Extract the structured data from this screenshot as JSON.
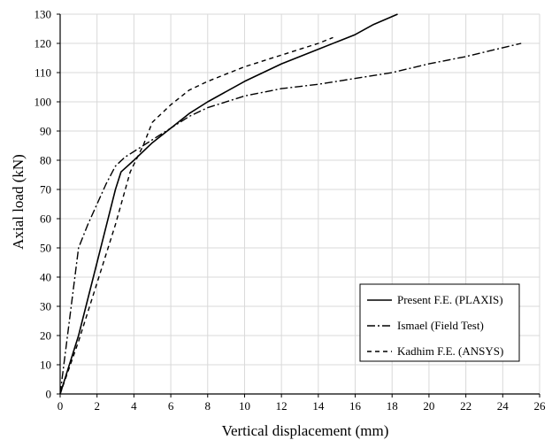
{
  "chart_data": {
    "type": "line",
    "title": "",
    "xlabel": "Vertical displacement (mm)",
    "ylabel": "Axial load (kN)",
    "xlim": [
      0,
      26
    ],
    "ylim": [
      0,
      130
    ],
    "x_ticks": [
      "0",
      "2",
      "4",
      "6",
      "8",
      "10",
      "12",
      "14",
      "16",
      "18",
      "20",
      "22",
      "24",
      "26"
    ],
    "y_ticks": [
      "0",
      "10",
      "20",
      "30",
      "40",
      "50",
      "60",
      "70",
      "80",
      "90",
      "100",
      "110",
      "120",
      "130"
    ],
    "grid": true,
    "legend_position": "bottom-right",
    "series": [
      {
        "name": "Present F.E. (PLAXIS)",
        "style": "solid",
        "points": [
          [
            0,
            0
          ],
          [
            1,
            20
          ],
          [
            2,
            45
          ],
          [
            3,
            70
          ],
          [
            3.3,
            76
          ],
          [
            4,
            80
          ],
          [
            5,
            86
          ],
          [
            6,
            91
          ],
          [
            7,
            96
          ],
          [
            8,
            100
          ],
          [
            10,
            107
          ],
          [
            12,
            113
          ],
          [
            14,
            118
          ],
          [
            16,
            123
          ],
          [
            17,
            126.5
          ],
          [
            18.3,
            130
          ]
        ]
      },
      {
        "name": "Ismael (Field Test)",
        "style": "dashdot",
        "points": [
          [
            0,
            0
          ],
          [
            0.5,
            25
          ],
          [
            1,
            50
          ],
          [
            1.5,
            58
          ],
          [
            2,
            65
          ],
          [
            2.5,
            72
          ],
          [
            3,
            78
          ],
          [
            3.5,
            81
          ],
          [
            4,
            83
          ],
          [
            5,
            87
          ],
          [
            6,
            91
          ],
          [
            7,
            95
          ],
          [
            8,
            98
          ],
          [
            10,
            102
          ],
          [
            12,
            104.5
          ],
          [
            14,
            106
          ],
          [
            16,
            108
          ],
          [
            18,
            110
          ],
          [
            20,
            113
          ],
          [
            22,
            115.5
          ],
          [
            24,
            118.5
          ],
          [
            25,
            120
          ]
        ]
      },
      {
        "name": "Kadhim F.E. (ANSYS)",
        "style": "dashed",
        "points": [
          [
            0,
            0
          ],
          [
            1,
            18
          ],
          [
            2,
            38
          ],
          [
            3,
            58
          ],
          [
            3.8,
            76
          ],
          [
            4.5,
            85
          ],
          [
            5,
            93
          ],
          [
            6,
            99
          ],
          [
            7,
            104
          ],
          [
            8,
            107
          ],
          [
            10,
            112
          ],
          [
            12,
            116
          ],
          [
            14,
            120
          ],
          [
            14.8,
            122
          ]
        ]
      }
    ]
  }
}
